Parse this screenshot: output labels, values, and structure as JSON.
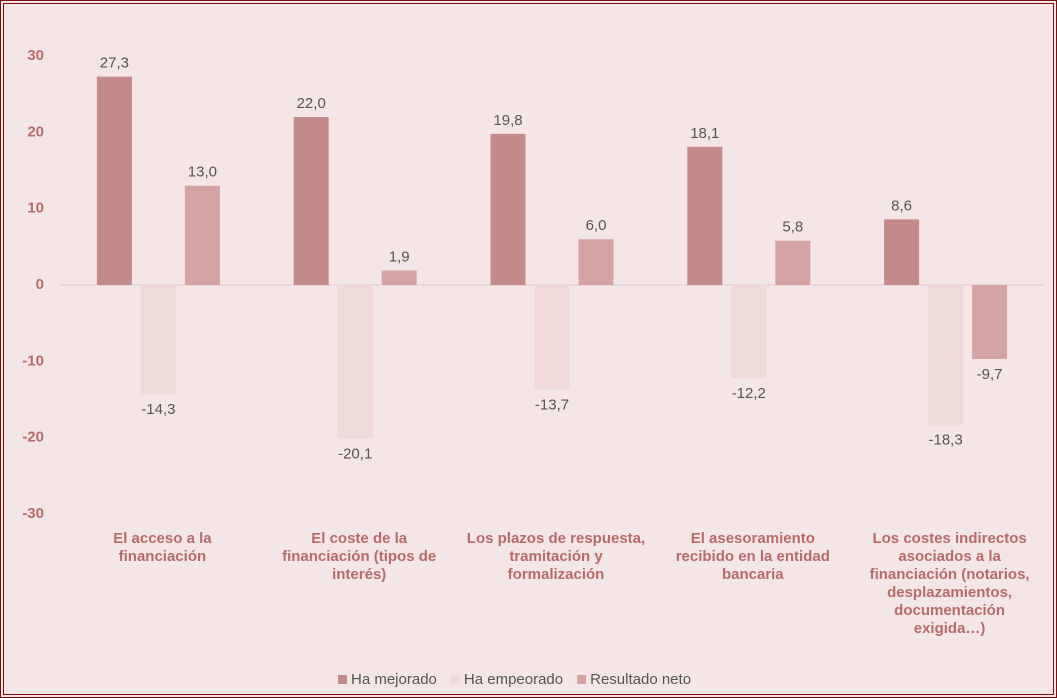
{
  "chart_data": {
    "type": "bar",
    "categories": [
      "El acceso a la financiación",
      "El coste de la financiación (tipos de interés)",
      "Los plazos de respuesta, tramitación y formalización",
      "El asesoramiento recibido en la entidad bancaria",
      "Los costes indirectos asociados a la financiación (notarios, desplazamientos, documentación exigida…)"
    ],
    "series": [
      {
        "name": "Ha mejorado",
        "color": "#c48a8a",
        "values": [
          27.3,
          22.0,
          19.8,
          18.1,
          8.6
        ],
        "value_labels": [
          "27,3",
          "22,0",
          "19,8",
          "18,1",
          "8,6"
        ]
      },
      {
        "name": "Ha empeorado",
        "color": "#efd9d9",
        "values": [
          -14.3,
          -20.1,
          -13.7,
          -12.2,
          -18.3
        ],
        "value_labels": [
          "-14,3",
          "-20,1",
          "-13,7",
          "-12,2",
          "-18,3"
        ]
      },
      {
        "name": "Resultado neto",
        "color": "#d4a3a3",
        "values": [
          13.0,
          1.9,
          6.0,
          5.8,
          -9.7
        ],
        "value_labels": [
          "13,0",
          "1,9",
          "6,0",
          "5,8",
          "-9,7"
        ]
      }
    ],
    "ylim": [
      -30,
      30
    ],
    "yticks": [
      -30,
      -20,
      -10,
      0,
      10,
      20,
      30
    ],
    "legend": "bottom"
  }
}
